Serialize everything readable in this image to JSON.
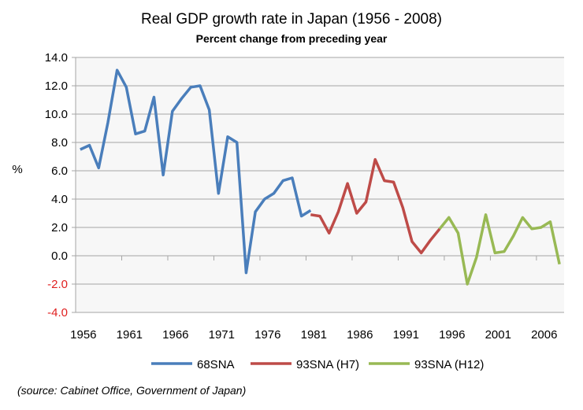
{
  "chart_data": {
    "type": "line",
    "title": "Real GDP growth rate in Japan (1956 - 2008)",
    "subtitle": "Percent change from preceding year",
    "xlabel": "",
    "ylabel": "%",
    "ylim": [
      -4,
      14
    ],
    "yticks": [
      "14.0",
      "12.0",
      "10.0",
      "8.0",
      "6.0",
      "4.0",
      "2.0",
      "0.0",
      "-2.0",
      "-4.0"
    ],
    "xlim": [
      1956,
      2008
    ],
    "xticks": [
      "1956",
      "1961",
      "1966",
      "1971",
      "1976",
      "1981",
      "1986",
      "1991",
      "1996",
      "2001",
      "2006"
    ],
    "grid": true,
    "legend": "bottom",
    "negative_tick_color": "#e02020",
    "series": [
      {
        "name": "68SNA",
        "color": "#4a7ebb",
        "start": 1956,
        "values": [
          7.5,
          7.8,
          6.2,
          9.4,
          13.1,
          11.9,
          8.6,
          8.8,
          11.2,
          5.7,
          10.2,
          11.1,
          11.9,
          12.0,
          10.3,
          4.4,
          8.4,
          8.0,
          -1.2,
          3.1,
          4.0,
          4.4,
          5.3,
          5.5,
          2.8,
          3.2
        ]
      },
      {
        "name": "93SNA (H7)",
        "color": "#be4b48",
        "start": 1981,
        "values": [
          2.9,
          2.8,
          1.6,
          3.1,
          5.1,
          3.0,
          3.8,
          6.8,
          5.3,
          5.2,
          3.4,
          1.0,
          0.2,
          1.1,
          1.9
        ]
      },
      {
        "name": "93SNA (H12)",
        "color": "#98b954",
        "start": 1995,
        "values": [
          1.9,
          2.7,
          1.6,
          -2.0,
          -0.1,
          2.9,
          0.2,
          0.3,
          1.4,
          2.7,
          1.9,
          2.0,
          2.4,
          -0.6
        ]
      }
    ]
  },
  "source": "(source:  Cabinet Office, Government of Japan)"
}
